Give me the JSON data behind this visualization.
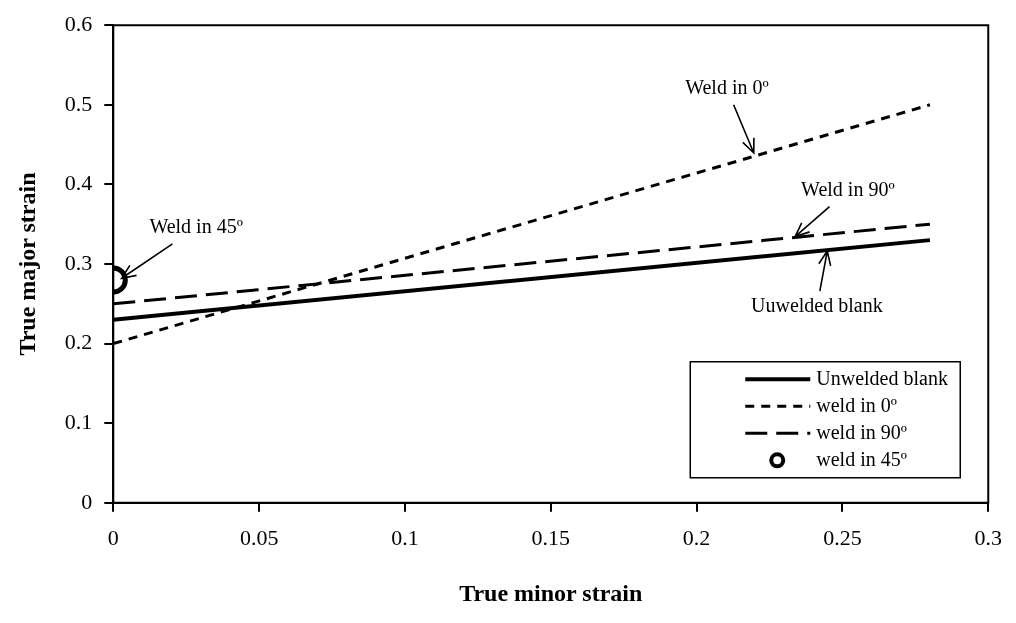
{
  "chart_data": {
    "type": "line",
    "xlabel": "True minor strain",
    "ylabel": "True major strain",
    "xlim": [
      0,
      0.3
    ],
    "xticks": [
      0,
      0.05,
      0.1,
      0.15,
      0.2,
      0.25,
      0.3
    ],
    "ylim": [
      0,
      0.6
    ],
    "yticks": [
      0,
      0.1,
      0.2,
      0.3,
      0.4,
      0.5,
      0.6
    ],
    "x": [
      0,
      0.28
    ],
    "grid": false,
    "legend": "bottom right",
    "marker": "none",
    "series": [
      {
        "name": "Unwelded blank",
        "color": "#000000",
        "line_style": "solid",
        "values": [
          0.23,
          0.33
        ]
      },
      {
        "name": "weld in 0º",
        "color": "#000000",
        "line_style": "dotted",
        "values": [
          0.2,
          0.5
        ]
      },
      {
        "name": "weld in 90º",
        "color": "#000000",
        "line_style": "dashed",
        "values": [
          0.25,
          0.35
        ]
      },
      {
        "name": "weld in 45º",
        "type": "scatter",
        "marker": "circle",
        "color": "#000000",
        "x": [
          0
        ],
        "values": [
          0.28
        ]
      }
    ],
    "annotations": [
      {
        "text": "Weld in 0º",
        "x": 0.22,
        "y": 0.436
      },
      {
        "text": "Weld in 90º",
        "x": 0.233,
        "y": 0.332
      },
      {
        "text": "Uuwelded blank",
        "x": 0.245,
        "y": 0.32
      },
      {
        "text": "Weld in 45º",
        "x": 0.002,
        "y": 0.28
      }
    ]
  }
}
